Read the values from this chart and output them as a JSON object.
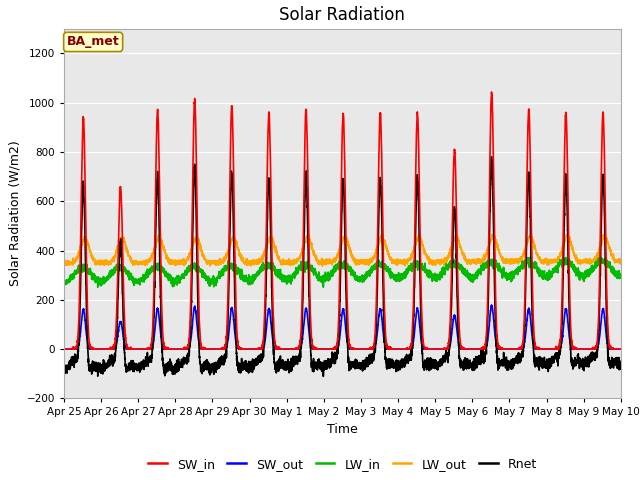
{
  "title": "Solar Radiation",
  "xlabel": "Time",
  "ylabel": "Solar Radiation (W/m2)",
  "ylim": [
    -200,
    1300
  ],
  "yticks": [
    -200,
    0,
    200,
    400,
    600,
    800,
    1000,
    1200
  ],
  "background_color": "#ffffff",
  "plot_bg_color": "#e8e8e8",
  "annotation_label": "BA_met",
  "annotation_box_color": "#ffffcc",
  "annotation_border_color": "#8B0000",
  "x_tick_labels": [
    "Apr 25",
    "Apr 26",
    "Apr 27",
    "Apr 28",
    "Apr 29",
    "Apr 30",
    "May 1",
    "May 2",
    "May 3",
    "May 4",
    "May 5",
    "May 6",
    "May 7",
    "May 8",
    "May 9",
    "May 10"
  ],
  "series": {
    "SW_in": {
      "color": "#ff0000",
      "linewidth": 1.2
    },
    "SW_out": {
      "color": "#0000ff",
      "linewidth": 1.2
    },
    "LW_in": {
      "color": "#00bb00",
      "linewidth": 1.2
    },
    "LW_out": {
      "color": "#ffa500",
      "linewidth": 1.2
    },
    "Rnet": {
      "color": "#000000",
      "linewidth": 1.2
    }
  },
  "sw_peaks": [
    940,
    660,
    970,
    1010,
    985,
    960,
    970,
    955,
    960,
    955,
    810,
    1040,
    970,
    955,
    960
  ],
  "n_days": 15,
  "pts_per_day": 288
}
